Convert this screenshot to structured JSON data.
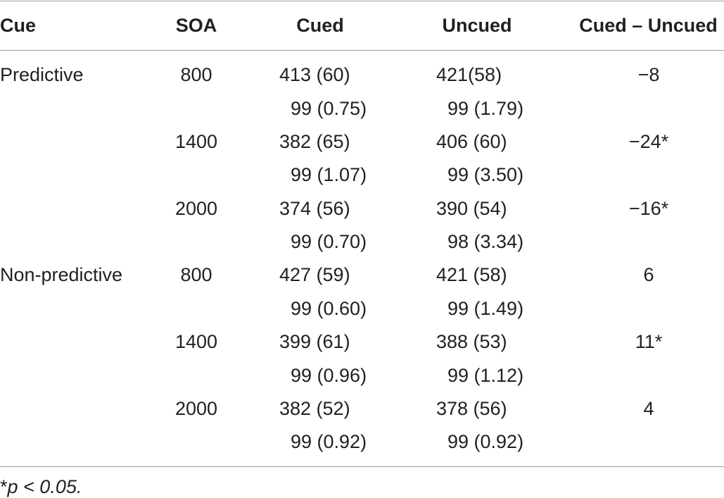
{
  "table": {
    "headers": {
      "cue": "Cue",
      "soa": "SOA",
      "cued": "Cued",
      "uncued": "Uncued",
      "diff": "Cued – Uncued"
    },
    "rows": [
      {
        "cue": "Predictive",
        "soa": "800",
        "cued_rt": "413 (60)",
        "cued_acc": "99 (0.75)",
        "uncued_rt": "421(58)",
        "uncued_acc": "99 (1.79)",
        "diff": "−8"
      },
      {
        "cue": "",
        "soa": "1400",
        "cued_rt": "382 (65)",
        "cued_acc": "99 (1.07)",
        "uncued_rt": "406 (60)",
        "uncued_acc": "99 (3.50)",
        "diff": "−24*"
      },
      {
        "cue": "",
        "soa": "2000",
        "cued_rt": "374 (56)",
        "cued_acc": "99 (0.70)",
        "uncued_rt": "390 (54)",
        "uncued_acc": "98 (3.34)",
        "diff": "−16*"
      },
      {
        "cue": "Non-predictive",
        "soa": "800",
        "cued_rt": "427 (59)",
        "cued_acc": "99 (0.60)",
        "uncued_rt": "421 (58)",
        "uncued_acc": "99 (1.49)",
        "diff": "6"
      },
      {
        "cue": "",
        "soa": "1400",
        "cued_rt": "399 (61)",
        "cued_acc": "99 (0.96)",
        "uncued_rt": "388 (53)",
        "uncued_acc": "99 (1.12)",
        "diff": "11*"
      },
      {
        "cue": "",
        "soa": "2000",
        "cued_rt": "382 (52)",
        "cued_acc": "99 (0.92)",
        "uncued_rt": "378 (56)",
        "uncued_acc": "99 (0.92)",
        "diff": "4"
      }
    ]
  },
  "footnote": {
    "star": "*",
    "text": "p < 0.05."
  }
}
